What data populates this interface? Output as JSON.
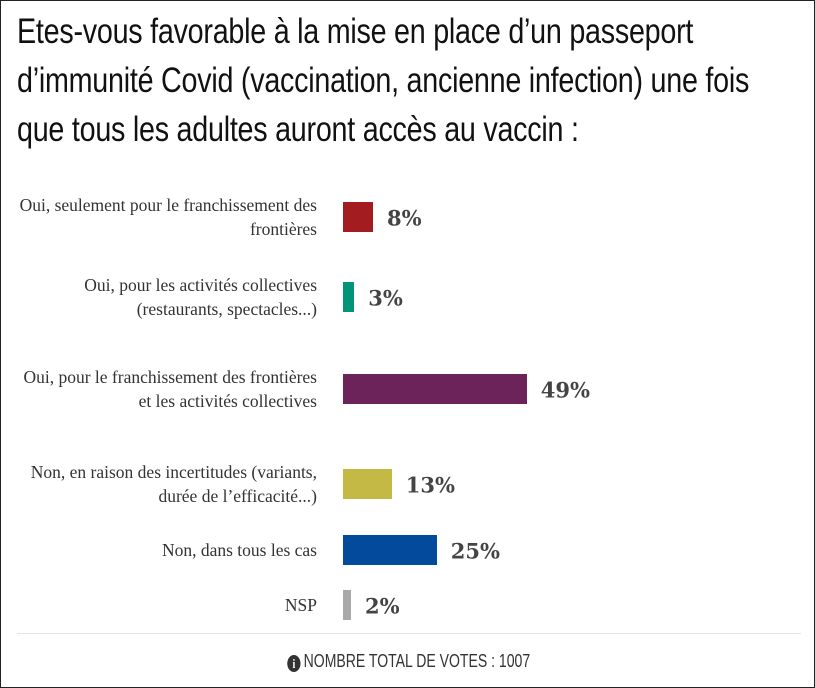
{
  "chart_data": {
    "type": "bar",
    "orientation": "horizontal",
    "title": "Etes-vous favorable à la mise en place d’un passeport d’immunité Covid (vaccination, ancienne infection) une fois que tous les adultes auront accès au vaccin :",
    "categories": [
      "Oui, seulement pour le franchissement des frontières",
      "Oui, pour les activités collectives (restaurants, spectacles...)",
      "Oui, pour le franchissement des frontières et les activités collectives",
      "Non, en raison des incertitudes (variants, durée de l’efficacité...)",
      "Non, dans tous les cas",
      "NSP"
    ],
    "values": [
      8,
      3,
      49,
      13,
      25,
      2
    ],
    "value_labels": [
      "8%",
      "3%",
      "49%",
      "13%",
      "25%",
      "2%"
    ],
    "colors": [
      "#a31c1f",
      "#009478",
      "#6b235a",
      "#c4b944",
      "#034a9c",
      "#a9a9a9"
    ],
    "unit": "%",
    "xlim": [
      0,
      100
    ],
    "grid": false
  },
  "footer": {
    "icon": "info-icon",
    "text": "NOMBRE TOTAL DE VOTES : 1007"
  }
}
